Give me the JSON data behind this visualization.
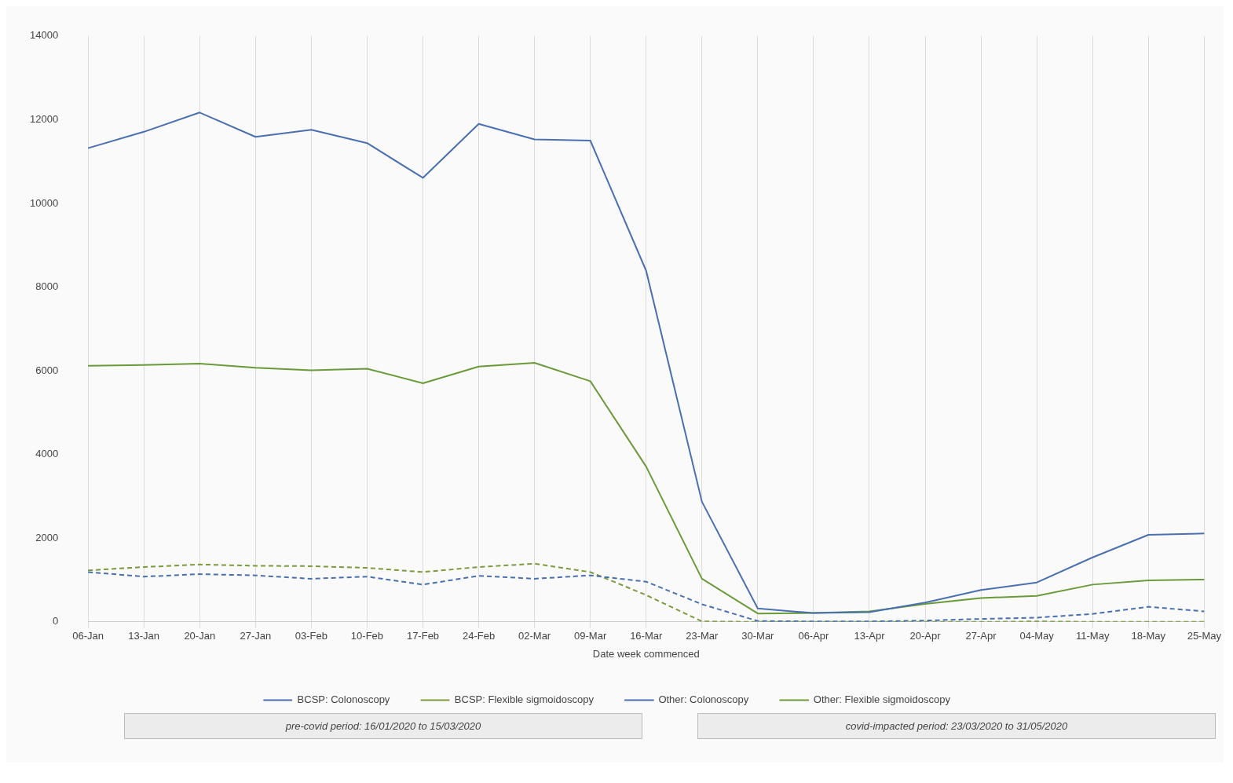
{
  "chart_data": {
    "type": "line",
    "xlabel": "Date week commenced",
    "categories": [
      "06-Jan",
      "13-Jan",
      "20-Jan",
      "27-Jan",
      "03-Feb",
      "10-Feb",
      "17-Feb",
      "24-Feb",
      "02-Mar",
      "09-Mar",
      "16-Mar",
      "23-Mar",
      "30-Mar",
      "06-Apr",
      "13-Apr",
      "20-Apr",
      "27-Apr",
      "04-May",
      "11-May",
      "18-May",
      "25-May"
    ],
    "series": [
      {
        "name": "BCSP: Colonoscopy",
        "color": "#4a6fb0",
        "line_style": "dashed",
        "values": [
          1190,
          1080,
          1140,
          1110,
          1030,
          1080,
          890,
          1100,
          1030,
          1110,
          960,
          420,
          20,
          10,
          10,
          30,
          70,
          100,
          190,
          360,
          250
        ]
      },
      {
        "name": "BCSP: Flexible sigmoidoscopy",
        "color": "#7a9a3c",
        "line_style": "dashed",
        "values": [
          1230,
          1310,
          1370,
          1340,
          1330,
          1290,
          1190,
          1310,
          1390,
          1190,
          640,
          10,
          0,
          0,
          0,
          0,
          0,
          10,
          0,
          0,
          0
        ]
      },
      {
        "name": "Other: Colonoscopy",
        "color": "#4a6fb0",
        "line_style": "solid",
        "values": [
          11320,
          11710,
          12170,
          11590,
          11760,
          11440,
          10610,
          11900,
          11530,
          11500,
          8390,
          2870,
          320,
          210,
          230,
          460,
          760,
          940,
          1540,
          2080,
          2110
        ]
      },
      {
        "name": "Other: Flexible sigmoidoscopy",
        "color": "#6a9a3a",
        "line_style": "solid",
        "values": [
          6120,
          6140,
          6170,
          6070,
          6010,
          6050,
          5700,
          6100,
          6190,
          5750,
          3710,
          1030,
          200,
          210,
          250,
          430,
          570,
          620,
          890,
          990,
          1010
        ]
      }
    ],
    "ylim": [
      0,
      14000
    ],
    "yticks": [
      0,
      2000,
      4000,
      6000,
      8000,
      10000,
      12000,
      14000
    ],
    "grid": "x",
    "legend": "bottom",
    "marker": "none",
    "annotations": [
      "pre-covid period: 16/01/2020 to 15/03/2020",
      "covid-impacted period: 23/03/2020 to 31/05/2020"
    ]
  }
}
